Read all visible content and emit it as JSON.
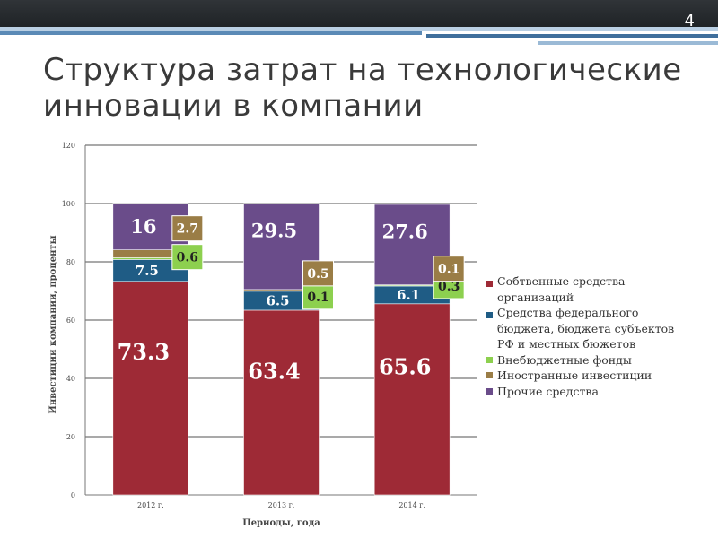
{
  "slide": {
    "number": "4",
    "title": "Структура затрат на технологические инновации в компании"
  },
  "colors": {
    "header": "#262a2e",
    "stripe_blue": "#5b8ab6",
    "stripe_light": "#9bbad6"
  },
  "chart_data": {
    "type": "bar",
    "stacked": true,
    "categories": [
      "2012 г.",
      "2013 г.",
      "2014 г."
    ],
    "xlabel": "Периоды, года",
    "ylabel": "Инвестиции компании, проценты",
    "ylim": [
      0,
      120
    ],
    "yticks": [
      0,
      20,
      40,
      60,
      80,
      100,
      120
    ],
    "grid": true,
    "legend_position": "right",
    "series": [
      {
        "name": "Собтвенные средства организаций",
        "legend_lines": [
          "Собтвенные средства",
          "организаций"
        ],
        "color": "#9e2a36",
        "values": [
          73.3,
          63.4,
          65.6
        ],
        "labels": [
          "73.3",
          "63.4",
          "65.6"
        ]
      },
      {
        "name": "Средства федерального бюджета, бюджета субъектов РФ и местных бюжетов",
        "legend_lines": [
          "Средства федерального",
          "бюджета, бюджета субъектов",
          "РФ и местных бюжетов"
        ],
        "color": "#1f5c85",
        "values": [
          7.5,
          6.5,
          6.1
        ],
        "labels": [
          "7.5",
          "6.5",
          "6.1"
        ]
      },
      {
        "name": "Внебюджетные фонды",
        "legend_lines": [
          "Внебюджетные фонды"
        ],
        "color": "#8dd04f",
        "values": [
          0.6,
          0.1,
          0.3
        ],
        "labels": [
          "0.6",
          "0.1",
          "0.3"
        ]
      },
      {
        "name": "Иностранные инвестиции",
        "legend_lines": [
          "Иностранные инвестиции"
        ],
        "color": "#9a7d46",
        "values": [
          2.7,
          0.5,
          0.1
        ],
        "labels": [
          "2.7",
          "0.5",
          "0.1"
        ]
      },
      {
        "name": "Прочие средства",
        "legend_lines": [
          "Прочие средства"
        ],
        "color": "#6a4c8a",
        "values": [
          16,
          29.5,
          27.6
        ],
        "labels": [
          "16",
          "29.5",
          "27.6"
        ]
      }
    ]
  }
}
